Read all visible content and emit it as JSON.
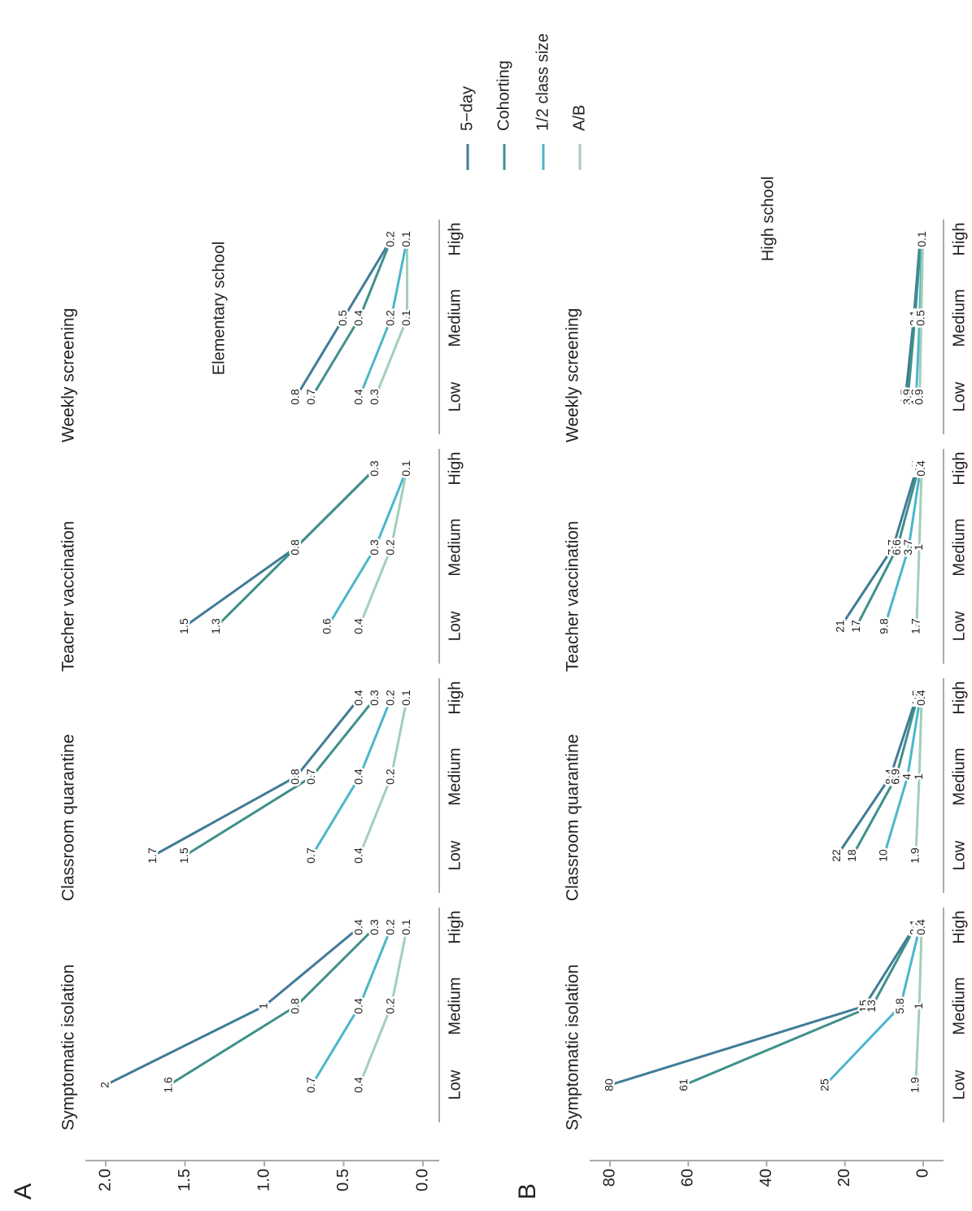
{
  "legend": {
    "position": "right",
    "entries": [
      {
        "name": "5−day",
        "color": "#417b98"
      },
      {
        "name": "Cohorting",
        "color": "#3f9189"
      },
      {
        "name": "1/2 class size",
        "color": "#4bb6cb"
      },
      {
        "name": "A/B",
        "color": "#a2cfb6"
      }
    ]
  },
  "chart_data": [
    {
      "type": "line",
      "panel": "A",
      "title": "Elementary school",
      "categories": [
        "Low",
        "Medium",
        "High"
      ],
      "ylim": [
        0,
        2
      ],
      "yticks": [
        {
          "value": 0,
          "label": "0.0"
        },
        0.5,
        {
          "value": 1,
          "label": "1.0"
        },
        1.5,
        {
          "value": 2,
          "label": "2.0"
        }
      ],
      "facets": [
        {
          "title": "Symptomatic isolation",
          "series": [
            {
              "values": [
                2,
                1,
                0.4
              ]
            },
            {
              "values": [
                1.6,
                0.8,
                0.3
              ]
            },
            {
              "values": [
                0.7,
                0.4,
                0.2
              ]
            },
            {
              "values": [
                0.4,
                0.2,
                0.1
              ]
            }
          ]
        },
        {
          "title": "Classroom quarantine",
          "series": [
            {
              "values": [
                1.7,
                0.8,
                0.4
              ]
            },
            {
              "values": [
                1.5,
                0.7,
                0.3
              ]
            },
            {
              "values": [
                0.7,
                0.4,
                0.2
              ]
            },
            {
              "values": [
                0.4,
                0.2,
                0.1
              ]
            }
          ]
        },
        {
          "title": "Teacher vaccination",
          "series": [
            {
              "values": [
                1.5,
                0.8,
                0.3
              ]
            },
            {
              "values": [
                1.3,
                0.8,
                0.3
              ]
            },
            {
              "values": [
                0.6,
                0.3,
                0.1
              ]
            },
            {
              "values": [
                0.4,
                0.2,
                0.1
              ]
            }
          ]
        },
        {
          "title": "Weekly screening",
          "series": [
            {
              "values": [
                0.8,
                0.5,
                0.2
              ]
            },
            {
              "values": [
                0.7,
                0.4,
                0.2
              ]
            },
            {
              "values": [
                0.4,
                0.2,
                0.1
              ]
            },
            {
              "values": [
                0.3,
                0.1,
                0.1
              ]
            }
          ]
        }
      ]
    },
    {
      "type": "line",
      "panel": "B",
      "title": "High school",
      "categories": [
        "Low",
        "Medium",
        "High"
      ],
      "ylim": [
        0,
        80
      ],
      "yticks": [
        0,
        20,
        40,
        60,
        80
      ],
      "facets": [
        {
          "title": "Symptomatic isolation",
          "series": [
            {
              "values": [
                80,
                15,
                2.3
              ]
            },
            {
              "values": [
                61,
                13,
                2.1
              ]
            },
            {
              "values": [
                25,
                5.8,
                0.9
              ]
            },
            {
              "values": [
                1.9,
                1,
                0.4
              ]
            }
          ]
        },
        {
          "title": "Classroom quarantine",
          "series": [
            {
              "values": [
                22,
                8.4,
                1.8
              ]
            },
            {
              "values": [
                18,
                6.9,
                1.5
              ]
            },
            {
              "values": [
                10,
                4,
                0.8
              ]
            },
            {
              "values": [
                1.9,
                1,
                0.4
              ]
            }
          ]
        },
        {
          "title": "Teacher vaccination",
          "series": [
            {
              "values": [
                21,
                7.7,
                1.7
              ]
            },
            {
              "values": [
                17,
                6.6,
                1.2
              ]
            },
            {
              "values": [
                9.8,
                3.7,
                0.7
              ]
            },
            {
              "values": [
                1.7,
                1,
                0.4
              ]
            }
          ]
        },
        {
          "title": "Weekly screening",
          "series": [
            {
              "values": [
                4.5,
                2.4,
                0.8
              ]
            },
            {
              "values": [
                3.9,
                2.1,
                0.6
              ]
            },
            {
              "values": [
                1.8,
                0.9,
                0.3
              ]
            },
            {
              "values": [
                0.9,
                0.5,
                0.1
              ]
            }
          ]
        }
      ]
    }
  ]
}
